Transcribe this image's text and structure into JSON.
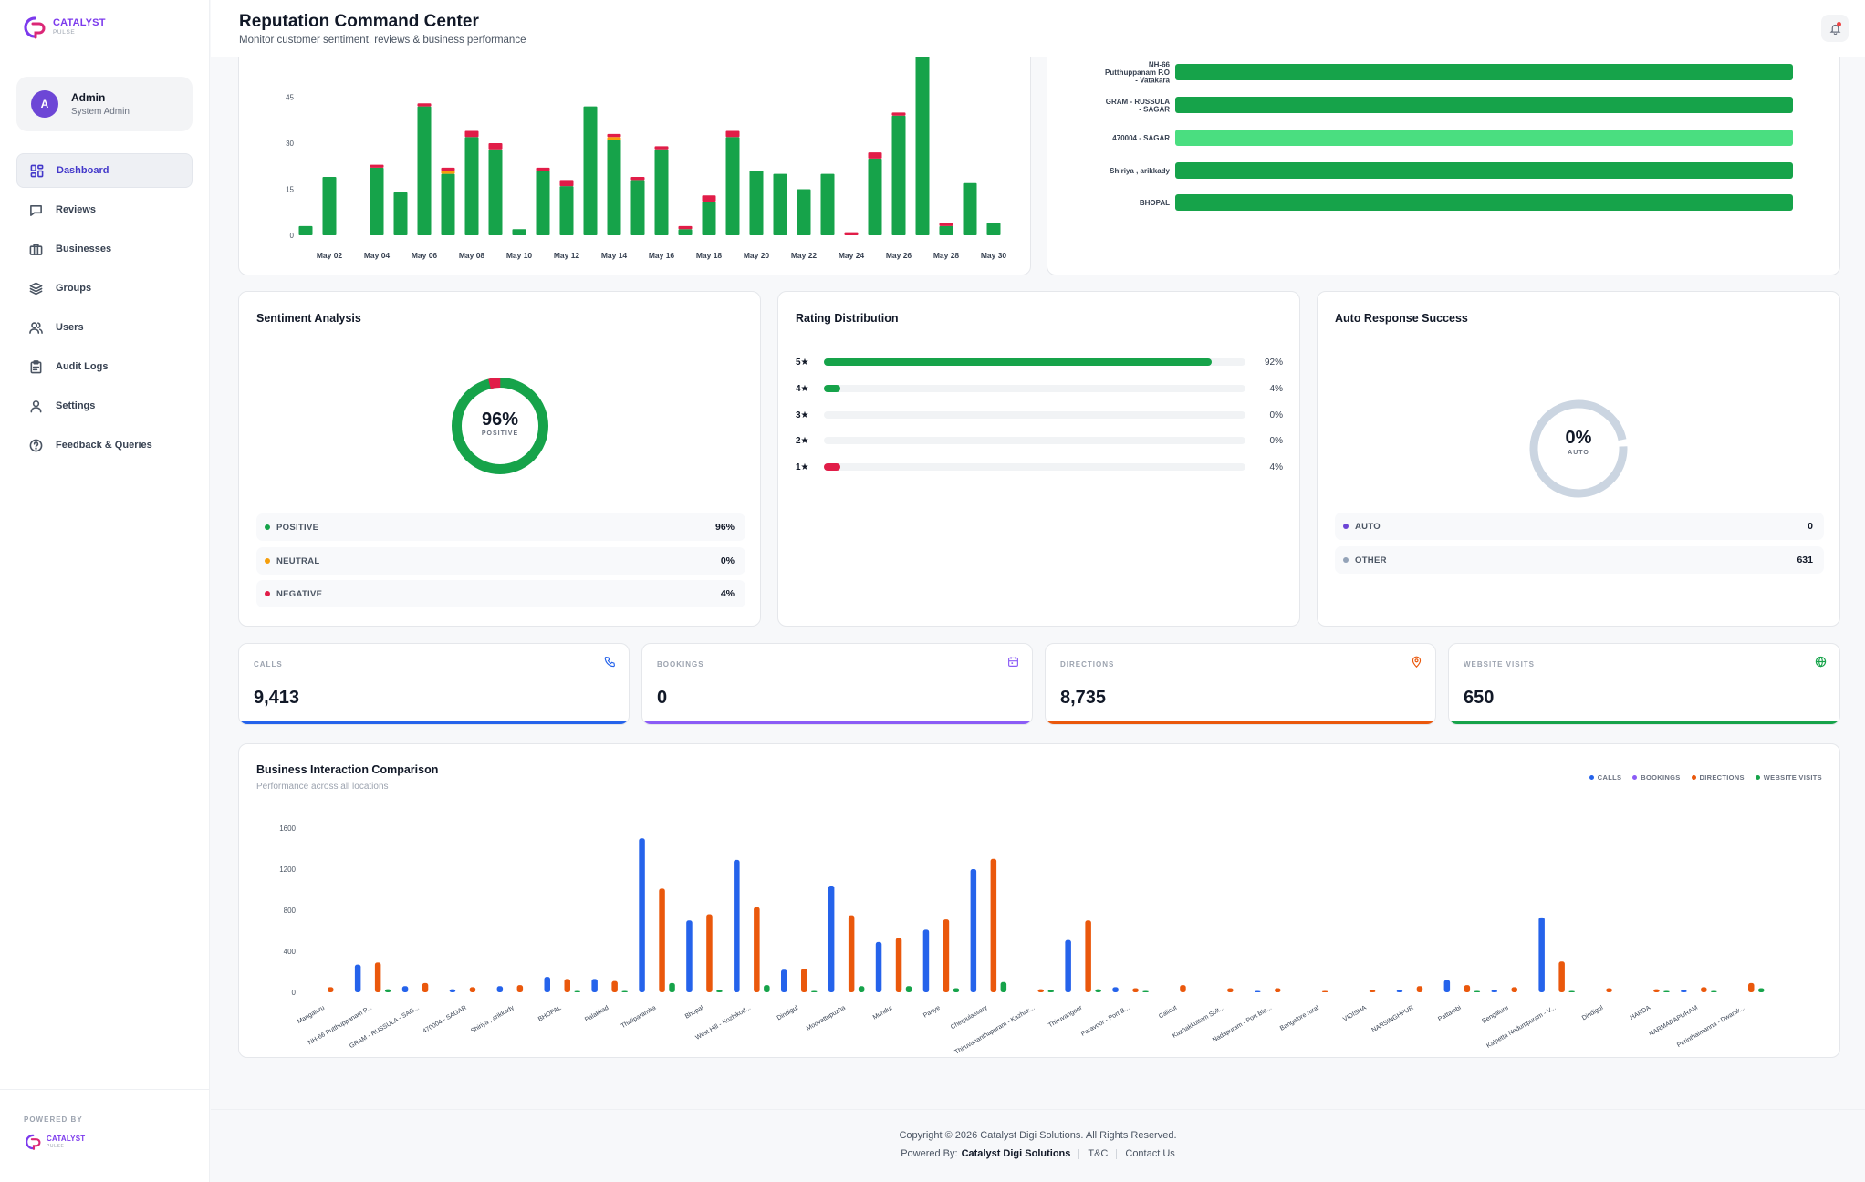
{
  "brand": {
    "name": "CATALYST",
    "sub": "PULSE"
  },
  "user": {
    "initial": "A",
    "name": "Admin",
    "role": "System Admin"
  },
  "nav": [
    {
      "label": "Dashboard",
      "icon": "dashboard-icon",
      "active": true
    },
    {
      "label": "Reviews",
      "icon": "chat-icon"
    },
    {
      "label": "Businesses",
      "icon": "briefcase-icon"
    },
    {
      "label": "Groups",
      "icon": "layers-icon"
    },
    {
      "label": "Users",
      "icon": "users-icon"
    },
    {
      "label": "Audit Logs",
      "icon": "clipboard-icon"
    },
    {
      "label": "Settings",
      "icon": "user-gear-icon"
    },
    {
      "label": "Feedback & Queries",
      "icon": "help-circle-icon"
    }
  ],
  "sidebar_footer": {
    "powered_by": "POWERED BY"
  },
  "header": {
    "title": "Reputation Command Center",
    "subtitle": "Monitor customer sentiment, reviews & business performance"
  },
  "colors": {
    "green": "#16a34a",
    "red": "#e11d48",
    "orange": "#f59e0b",
    "blue": "#2563eb",
    "purple": "#8b5cf6",
    "dirOrange": "#ea580c",
    "lightGreen": "#4ade80"
  },
  "daily_chart": {
    "chart_data": {
      "type": "bar",
      "stacked": true,
      "ylim": [
        0,
        55
      ],
      "yticks": [
        0,
        15,
        30,
        45
      ],
      "xticklabels": [
        "May 02",
        "May 04",
        "May 06",
        "May 08",
        "May 10",
        "May 12",
        "May 14",
        "May 16",
        "May 18",
        "May 20",
        "May 22",
        "May 24",
        "May 26",
        "May 28",
        "May 30"
      ],
      "positive": [
        3,
        19,
        0,
        22,
        14,
        42,
        20,
        32,
        28,
        2,
        21,
        16,
        42,
        31,
        18,
        28,
        2,
        11,
        32,
        21,
        20,
        15,
        20,
        0,
        25,
        39,
        59,
        3,
        17,
        4
      ],
      "neutral": [
        0,
        0,
        0,
        0,
        0,
        0,
        1,
        0,
        0,
        0,
        0,
        0,
        0,
        1,
        0,
        0,
        0,
        0,
        0,
        0,
        0,
        0,
        0,
        0,
        0,
        0,
        0,
        0,
        0,
        0
      ],
      "negative": [
        0,
        0,
        0,
        1,
        0,
        1,
        1,
        2,
        2,
        0,
        1,
        2,
        0,
        1,
        1,
        1,
        1,
        2,
        2,
        0,
        0,
        0,
        0,
        1,
        2,
        1,
        0,
        1,
        0,
        0
      ]
    }
  },
  "location_chart": {
    "chart_data": {
      "type": "bar",
      "orientation": "horizontal",
      "categories": [
        "NH-66 Putthuppanam P.O - Vatakara",
        "GRAM - RUSSULA - SAGAR",
        "470004 - SAGAR",
        "Shiriya , arikkady",
        "BHOPAL"
      ],
      "values": [
        100,
        100,
        100,
        100,
        100
      ],
      "highlight_index": 2
    }
  },
  "sentiment": {
    "title": "Sentiment Analysis",
    "center_value": "96%",
    "center_label": "POSITIVE",
    "chart_data": {
      "type": "pie",
      "labels": [
        "POSITIVE",
        "NEUTRAL",
        "NEGATIVE"
      ],
      "values": [
        96,
        0,
        4
      ]
    },
    "legend": [
      {
        "label": "POSITIVE",
        "value": "96%",
        "color": "#16a34a"
      },
      {
        "label": "NEUTRAL",
        "value": "0%",
        "color": "#f59e0b"
      },
      {
        "label": "NEGATIVE",
        "value": "4%",
        "color": "#e11d48"
      }
    ]
  },
  "rating": {
    "title": "Rating Distribution",
    "rows": [
      {
        "label": "5★",
        "pct": 92,
        "text": "92%",
        "color": "#16a34a"
      },
      {
        "label": "4★",
        "pct": 4,
        "text": "4%",
        "color": "#16a34a"
      },
      {
        "label": "3★",
        "pct": 0,
        "text": "0%",
        "color": "#16a34a"
      },
      {
        "label": "2★",
        "pct": 0,
        "text": "0%",
        "color": "#16a34a"
      },
      {
        "label": "1★",
        "pct": 4,
        "text": "4%",
        "color": "#e11d48"
      }
    ]
  },
  "auto_response": {
    "title": "Auto Response Success",
    "center_value": "0%",
    "center_label": "AUTO",
    "legend": [
      {
        "label": "AUTO",
        "value": "0",
        "color": "#6d46d6"
      },
      {
        "label": "OTHER",
        "value": "631",
        "color": "#94a3b8"
      }
    ]
  },
  "stats": [
    {
      "label": "CALLS",
      "value": "9,413",
      "icon": "phone-icon",
      "color": "#2563eb"
    },
    {
      "label": "BOOKINGS",
      "value": "0",
      "icon": "calendar-icon",
      "color": "#8b5cf6"
    },
    {
      "label": "DIRECTIONS",
      "value": "8,735",
      "icon": "map-pin-icon",
      "color": "#ea580c"
    },
    {
      "label": "WEBSITE VISITS",
      "value": "650",
      "icon": "globe-icon",
      "color": "#16a34a"
    }
  ],
  "interaction": {
    "title": "Business Interaction Comparison",
    "subtitle": "Performance across all locations",
    "legend": [
      "CALLS",
      "BOOKINGS",
      "DIRECTIONS",
      "WEBSITE VISITS"
    ],
    "chart_data": {
      "type": "bar",
      "ylim": [
        0,
        1600
      ],
      "yticks": [
        0,
        400,
        800,
        1200,
        1600
      ],
      "categories": [
        "Mangaluru",
        "NH-66 Putthuppanam P...",
        "GRAM - RUSSULA - SAG...",
        "470004 - SAGAR",
        "Shiriya , arikkady",
        "BHOPAL",
        "Palakkad",
        "Thaliparamba",
        "Bhopal",
        "West Hill - Kozhikod...",
        "Dindigul",
        "Moovattupuzha",
        "Mundur",
        "Pariye",
        "Cherpulassery",
        "Thiruvananthapuram - Kazhak...",
        "Thiruvangoor",
        "Paravoor - Port B...",
        "Calicut",
        "Kazhakkuttam Solt...",
        "Nadapuram - Port Bla...",
        "Bangalore rural",
        "VIDISHA",
        "NARSINGHPUR",
        "Pattambi",
        "Bengaluru",
        "Kalpetta Nedumpuram - V...",
        "Dindigul",
        "HARDA",
        "NARMADAPURAM",
        "Perinthalmanna - Dwarak..."
      ],
      "series": [
        {
          "name": "CALLS",
          "values": [
            0,
            270,
            60,
            30,
            60,
            150,
            130,
            1500,
            700,
            1290,
            220,
            1040,
            490,
            610,
            1200,
            0,
            510,
            50,
            0,
            0,
            10,
            0,
            0,
            20,
            120,
            20,
            730,
            0,
            0,
            20,
            0
          ]
        },
        {
          "name": "BOOKINGS",
          "values": [
            0,
            0,
            0,
            0,
            0,
            0,
            0,
            0,
            0,
            0,
            0,
            0,
            0,
            0,
            0,
            0,
            0,
            0,
            0,
            0,
            0,
            0,
            0,
            0,
            0,
            0,
            0,
            0,
            0,
            0,
            0
          ]
        },
        {
          "name": "DIRECTIONS",
          "values": [
            50,
            290,
            90,
            50,
            70,
            130,
            110,
            1010,
            760,
            830,
            230,
            750,
            530,
            710,
            1300,
            30,
            700,
            40,
            70,
            40,
            40,
            10,
            20,
            60,
            70,
            50,
            300,
            40,
            30,
            50,
            90
          ]
        },
        {
          "name": "WEBSITE VISITS",
          "values": [
            0,
            30,
            0,
            0,
            0,
            10,
            10,
            90,
            20,
            70,
            10,
            60,
            60,
            40,
            100,
            20,
            30,
            10,
            0,
            0,
            0,
            0,
            0,
            0,
            10,
            0,
            10,
            0,
            10,
            10,
            40
          ]
        }
      ]
    }
  },
  "footer": {
    "copyright": "Copyright © 2026 Catalyst Digi Solutions. All Rights Reserved.",
    "powered_label": "Powered By:",
    "powered_name": "Catalyst Digi Solutions",
    "tc": "T&C",
    "contact": "Contact Us"
  }
}
